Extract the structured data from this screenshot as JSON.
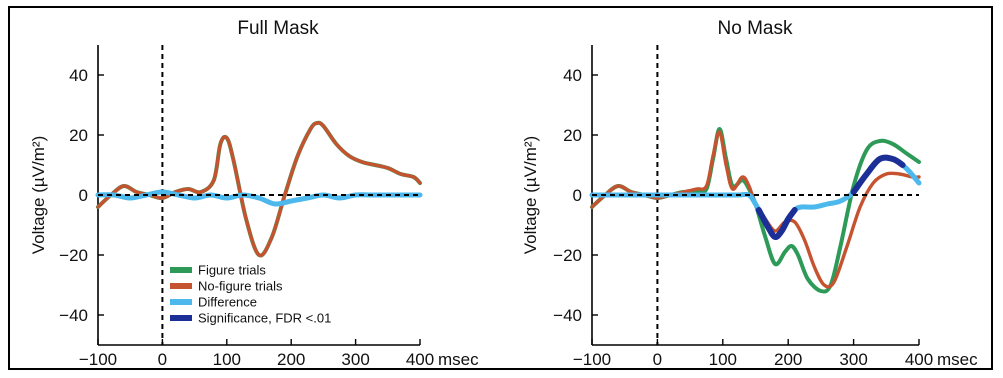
{
  "colors": {
    "figure": "#2e9a58",
    "nofigure": "#c5532f",
    "difference": "#4cb8ec",
    "significance": "#1c2f96"
  },
  "legend": [
    {
      "key": "figure",
      "label": "Figure trials"
    },
    {
      "key": "nofigure",
      "label": "No-figure trials"
    },
    {
      "key": "difference",
      "label": "Difference"
    },
    {
      "key": "significance",
      "label": "Significance, FDR <.01"
    }
  ],
  "chart_data": [
    {
      "type": "line",
      "title": "Full Mask",
      "xlabel": "",
      "x_unit": "msec",
      "ylabel": "Voltage (µV/m²)",
      "xlim": [
        -100,
        400
      ],
      "ylim": [
        -50,
        50
      ],
      "xticks": [
        -100,
        0,
        100,
        200,
        300,
        400
      ],
      "yticks": [
        -40,
        -20,
        0,
        20,
        40
      ],
      "zero_line": true,
      "onset_line_x": 0,
      "series": [
        {
          "key": "figure",
          "name": "Figure trials",
          "x": [
            -100,
            -80,
            -60,
            -40,
            -20,
            0,
            20,
            40,
            60,
            80,
            90,
            100,
            110,
            130,
            150,
            170,
            190,
            210,
            230,
            240,
            250,
            270,
            290,
            310,
            330,
            350,
            370,
            390,
            400
          ],
          "y": [
            -4,
            0,
            3,
            1,
            0,
            -1,
            1,
            2,
            1,
            5,
            17,
            19,
            12,
            -8,
            -20,
            -14,
            0,
            13,
            22,
            24,
            23,
            17,
            13,
            11,
            10,
            9,
            7,
            6,
            4
          ]
        },
        {
          "key": "nofigure",
          "name": "No-figure trials",
          "x": [
            -100,
            -80,
            -60,
            -40,
            -20,
            0,
            20,
            40,
            60,
            80,
            90,
            100,
            110,
            130,
            150,
            170,
            190,
            210,
            230,
            240,
            250,
            270,
            290,
            310,
            330,
            350,
            370,
            390,
            400
          ],
          "y": [
            -4,
            0,
            3,
            1,
            0,
            -1,
            1,
            2,
            1,
            5,
            17,
            19,
            12,
            -8,
            -20,
            -14,
            0,
            13,
            22,
            24,
            23,
            17,
            13,
            11,
            10,
            9,
            7,
            6,
            4
          ]
        },
        {
          "key": "difference",
          "name": "Difference",
          "x": [
            -100,
            -75,
            -50,
            -25,
            0,
            25,
            50,
            75,
            100,
            125,
            150,
            175,
            200,
            225,
            250,
            275,
            300,
            325,
            350,
            375,
            400
          ],
          "y": [
            0,
            0,
            -1,
            0,
            1,
            0,
            -1,
            0,
            -1,
            0,
            -1,
            -3,
            -2,
            -1,
            0,
            -1,
            0,
            0,
            0,
            0,
            0
          ]
        }
      ]
    },
    {
      "type": "line",
      "title": "No Mask",
      "xlabel": "",
      "x_unit": "msec",
      "ylabel": "Voltage (µV/m²)",
      "xlim": [
        -100,
        400
      ],
      "ylim": [
        -50,
        50
      ],
      "xticks": [
        -100,
        0,
        100,
        200,
        300,
        400
      ],
      "yticks": [
        -40,
        -20,
        0,
        20,
        40
      ],
      "zero_line": true,
      "onset_line_x": 0,
      "series": [
        {
          "key": "figure",
          "name": "Figure trials",
          "x": [
            -100,
            -80,
            -60,
            -40,
            -20,
            0,
            20,
            40,
            60,
            75,
            85,
            95,
            105,
            115,
            130,
            140,
            150,
            165,
            180,
            195,
            205,
            215,
            230,
            250,
            265,
            280,
            300,
            320,
            340,
            360,
            380,
            400
          ],
          "y": [
            -4,
            0,
            3,
            1,
            0,
            -1,
            0,
            1,
            1,
            2,
            12,
            22,
            12,
            3,
            5,
            2,
            -3,
            -14,
            -23,
            -19,
            -17,
            -20,
            -28,
            -32,
            -30,
            -17,
            3,
            15,
            18,
            17,
            14,
            11
          ]
        },
        {
          "key": "nofigure",
          "name": "No-figure trials",
          "x": [
            -100,
            -80,
            -60,
            -40,
            -20,
            0,
            20,
            40,
            60,
            75,
            85,
            95,
            105,
            115,
            130,
            140,
            150,
            165,
            180,
            195,
            210,
            225,
            240,
            255,
            270,
            290,
            310,
            330,
            350,
            370,
            390,
            400
          ],
          "y": [
            -4,
            0,
            3,
            1,
            0,
            -1,
            0,
            1,
            2,
            3,
            13,
            21,
            10,
            2,
            6,
            3,
            -3,
            -8,
            -12,
            -9,
            -9,
            -15,
            -24,
            -30,
            -29,
            -17,
            -4,
            4,
            7,
            7,
            6,
            6
          ]
        },
        {
          "key": "difference",
          "name": "Difference",
          "x": [
            -100,
            -75,
            -50,
            -25,
            0,
            25,
            50,
            75,
            100,
            125,
            140,
            150,
            160,
            170,
            180,
            190,
            200,
            210,
            220,
            240,
            260,
            280,
            300,
            320,
            340,
            360,
            380,
            400
          ],
          "y": [
            0,
            0,
            0,
            0,
            0,
            0,
            0,
            0,
            0,
            0,
            0,
            -3,
            -7,
            -11,
            -14,
            -12,
            -8,
            -5,
            -4,
            -4,
            -3,
            -2,
            1,
            7,
            12,
            12,
            9,
            4
          ]
        },
        {
          "key": "significance",
          "name": "Significance, FDR <.01",
          "segments": [
            {
              "x": [
                155,
                160,
                170,
                180,
                190,
                200,
                210
              ],
              "y": [
                -5,
                -7,
                -11,
                -14,
                -12,
                -8,
                -5
              ]
            },
            {
              "x": [
                300,
                320,
                340,
                360,
                375
              ],
              "y": [
                1,
                7,
                12,
                12,
                10
              ]
            }
          ]
        }
      ]
    }
  ]
}
